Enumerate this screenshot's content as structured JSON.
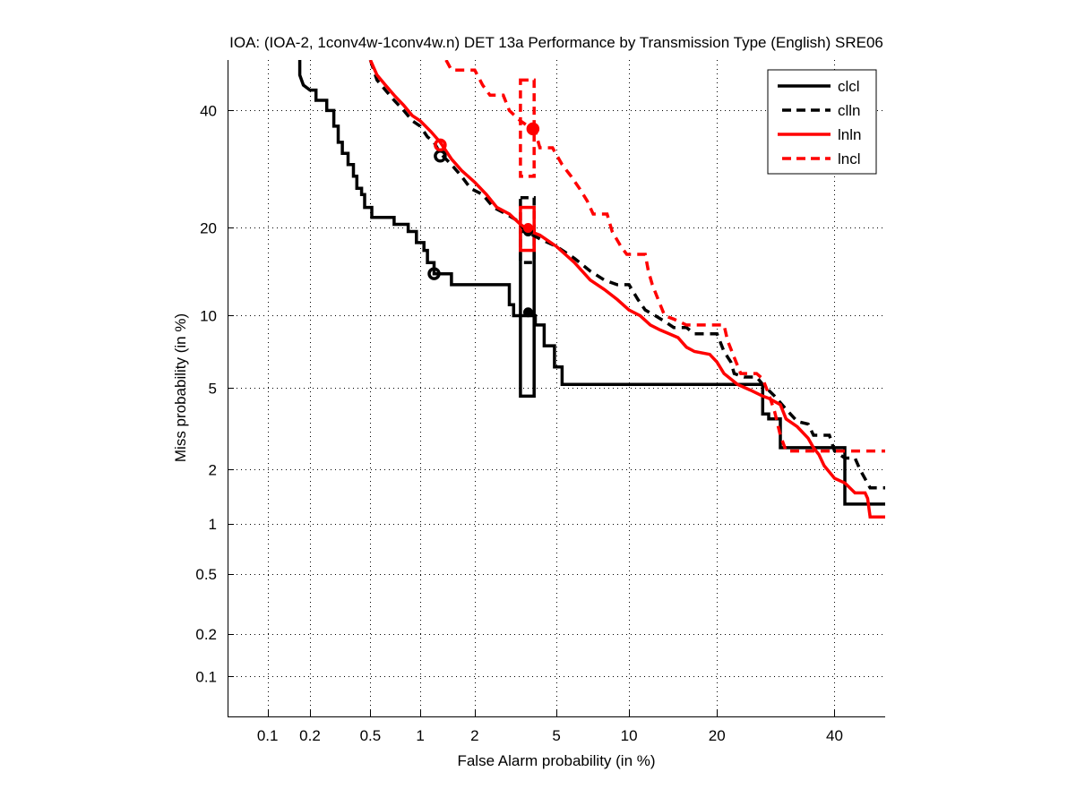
{
  "chart_data": {
    "type": "line",
    "title": "IOA: (IOA-2, 1conv4w-1conv4w.n) DET 13a Performance by Transmission Type (English) SRE06",
    "xlabel": "False Alarm probability (in %)",
    "ylabel": "Miss probability (in %)",
    "xscale": "normal-deviate",
    "yscale": "normal-deviate",
    "xlim": [
      0.05,
      50
    ],
    "ylim": [
      0.05,
      50
    ],
    "grid": true,
    "legend_position": "top-right",
    "xticks": [
      0.1,
      0.2,
      0.5,
      1,
      2,
      5,
      10,
      20,
      40
    ],
    "xtick_labels": [
      "0.1",
      "0.2",
      "0.5",
      "1",
      "2",
      "5",
      "10",
      "20",
      "40"
    ],
    "yticks": [
      0.1,
      0.2,
      0.5,
      1,
      2,
      5,
      10,
      20,
      40
    ],
    "ytick_labels": [
      "0.1",
      "0.2",
      "0.5",
      "1",
      "2",
      "5",
      "10",
      "20",
      "40"
    ],
    "series": [
      {
        "name": "clcl",
        "color": "#000000",
        "style": "solid",
        "points": [
          [
            0.17,
            50
          ],
          [
            0.17,
            47
          ],
          [
            0.18,
            45
          ],
          [
            0.2,
            44
          ],
          [
            0.22,
            44
          ],
          [
            0.22,
            42
          ],
          [
            0.26,
            42
          ],
          [
            0.26,
            40
          ],
          [
            0.29,
            40
          ],
          [
            0.29,
            37
          ],
          [
            0.31,
            37
          ],
          [
            0.31,
            34
          ],
          [
            0.33,
            34
          ],
          [
            0.33,
            32
          ],
          [
            0.36,
            32
          ],
          [
            0.36,
            30
          ],
          [
            0.39,
            30
          ],
          [
            0.39,
            28
          ],
          [
            0.41,
            28
          ],
          [
            0.41,
            26
          ],
          [
            0.44,
            26
          ],
          [
            0.44,
            25
          ],
          [
            0.46,
            25
          ],
          [
            0.46,
            23
          ],
          [
            0.51,
            23
          ],
          [
            0.51,
            21.5
          ],
          [
            0.62,
            21.5
          ],
          [
            0.7,
            21.5
          ],
          [
            0.7,
            20.5
          ],
          [
            0.85,
            20.5
          ],
          [
            0.85,
            19.5
          ],
          [
            0.95,
            19.5
          ],
          [
            0.95,
            18
          ],
          [
            1.05,
            18
          ],
          [
            1.05,
            17
          ],
          [
            1.1,
            17
          ],
          [
            1.1,
            15.5
          ],
          [
            1.2,
            15.5
          ],
          [
            1.2,
            14.2
          ],
          [
            1.5,
            14.2
          ],
          [
            1.5,
            13
          ],
          [
            2.2,
            13
          ],
          [
            2.9,
            13
          ],
          [
            3.0,
            13
          ],
          [
            3.0,
            11
          ],
          [
            3.15,
            11
          ],
          [
            3.15,
            10
          ],
          [
            4.0,
            10
          ],
          [
            4.0,
            9.2
          ],
          [
            4.4,
            9.2
          ],
          [
            4.4,
            7.6
          ],
          [
            4.9,
            7.6
          ],
          [
            4.9,
            6.2
          ],
          [
            5.3,
            6.2
          ],
          [
            5.3,
            5.2
          ],
          [
            10,
            5.2
          ],
          [
            20,
            5.2
          ],
          [
            27,
            5.2
          ],
          [
            27,
            3.8
          ],
          [
            28,
            3.8
          ],
          [
            28,
            3.6
          ],
          [
            30,
            3.6
          ],
          [
            30,
            2.6
          ],
          [
            42,
            2.6
          ],
          [
            42,
            1.3
          ],
          [
            50,
            1.3
          ]
        ]
      },
      {
        "name": "clln",
        "color": "#000000",
        "style": "dashed",
        "points": [
          [
            0.5,
            50
          ],
          [
            0.55,
            46
          ],
          [
            0.62,
            44
          ],
          [
            0.7,
            42
          ],
          [
            0.8,
            40
          ],
          [
            0.9,
            38
          ],
          [
            1.0,
            37
          ],
          [
            1.1,
            35
          ],
          [
            1.2,
            34
          ],
          [
            1.3,
            32
          ],
          [
            1.5,
            30
          ],
          [
            1.7,
            28
          ],
          [
            1.9,
            26
          ],
          [
            2.2,
            25
          ],
          [
            2.5,
            23
          ],
          [
            2.9,
            22
          ],
          [
            3.3,
            21
          ],
          [
            3.6,
            19.5
          ],
          [
            4.2,
            18.5
          ],
          [
            5,
            17.5
          ],
          [
            6,
            16
          ],
          [
            7,
            14.5
          ],
          [
            8,
            13.5
          ],
          [
            9,
            13
          ],
          [
            10,
            13
          ],
          [
            10.8,
            11.5
          ],
          [
            11.5,
            10.5
          ],
          [
            12.5,
            10
          ],
          [
            13.5,
            9.5
          ],
          [
            14.5,
            9
          ],
          [
            16,
            9
          ],
          [
            17,
            8.5
          ],
          [
            20,
            8.5
          ],
          [
            21,
            7.2
          ],
          [
            22,
            6.5
          ],
          [
            22.5,
            5.8
          ],
          [
            24,
            5.6
          ],
          [
            26,
            5.6
          ],
          [
            27,
            5.2
          ],
          [
            29,
            4.6
          ],
          [
            31,
            4
          ],
          [
            33,
            3.5
          ],
          [
            35,
            3.4
          ],
          [
            36,
            3.0
          ],
          [
            39,
            3.0
          ],
          [
            40,
            2.5
          ],
          [
            42,
            2.3
          ],
          [
            44,
            2.3
          ],
          [
            45,
            2.0
          ],
          [
            47,
            1.6
          ],
          [
            50,
            1.6
          ]
        ]
      },
      {
        "name": "lnln",
        "color": "#ff0000",
        "style": "solid",
        "points": [
          [
            0.5,
            50
          ],
          [
            0.55,
            47
          ],
          [
            0.62,
            45
          ],
          [
            0.7,
            43
          ],
          [
            0.8,
            41
          ],
          [
            0.9,
            39
          ],
          [
            1.0,
            38
          ],
          [
            1.15,
            36
          ],
          [
            1.3,
            34
          ],
          [
            1.5,
            31
          ],
          [
            1.7,
            29
          ],
          [
            2.0,
            27
          ],
          [
            2.3,
            25
          ],
          [
            2.6,
            23
          ],
          [
            3.0,
            22
          ],
          [
            3.4,
            20.5
          ],
          [
            3.8,
            19.5
          ],
          [
            4.2,
            19
          ],
          [
            5,
            17.5
          ],
          [
            6,
            15.5
          ],
          [
            7,
            13.5
          ],
          [
            8,
            12.5
          ],
          [
            9,
            11.5
          ],
          [
            10,
            10.5
          ],
          [
            11,
            10
          ],
          [
            12,
            9.2
          ],
          [
            13,
            8.8
          ],
          [
            14,
            8.5
          ],
          [
            15,
            8.2
          ],
          [
            16,
            7.5
          ],
          [
            17,
            7.2
          ],
          [
            19,
            7
          ],
          [
            20,
            6.5
          ],
          [
            21,
            5.8
          ],
          [
            23,
            5.2
          ],
          [
            25,
            4.9
          ],
          [
            27,
            4.6
          ],
          [
            28,
            4.5
          ],
          [
            30,
            4.2
          ],
          [
            31,
            3.6
          ],
          [
            33,
            3.3
          ],
          [
            35,
            2.9
          ],
          [
            36,
            2.6
          ],
          [
            37,
            2.4
          ],
          [
            38,
            2.1
          ],
          [
            40,
            1.8
          ],
          [
            42,
            1.7
          ],
          [
            44,
            1.5
          ],
          [
            46,
            1.5
          ],
          [
            46.5,
            1.4
          ],
          [
            47,
            1.1
          ],
          [
            50,
            1.1
          ]
        ]
      },
      {
        "name": "lncl",
        "color": "#ff0000",
        "style": "dashed",
        "points": [
          [
            1.4,
            50
          ],
          [
            1.5,
            48
          ],
          [
            2.0,
            48
          ],
          [
            2.2,
            45
          ],
          [
            2.4,
            43
          ],
          [
            2.8,
            43
          ],
          [
            3.0,
            40
          ],
          [
            3.4,
            38
          ],
          [
            3.7,
            37
          ],
          [
            4.0,
            36
          ],
          [
            4.2,
            33
          ],
          [
            4.8,
            33
          ],
          [
            5.3,
            30
          ],
          [
            5.8,
            28
          ],
          [
            6.3,
            26
          ],
          [
            6.8,
            24
          ],
          [
            7.2,
            22
          ],
          [
            8.2,
            22
          ],
          [
            8.6,
            19.5
          ],
          [
            9.3,
            17.5
          ],
          [
            9.8,
            16.5
          ],
          [
            11.5,
            16.5
          ],
          [
            11.8,
            14.5
          ],
          [
            12.2,
            13
          ],
          [
            12.8,
            11.5
          ],
          [
            13.5,
            10
          ],
          [
            14.5,
            9.7
          ],
          [
            16,
            9.2
          ],
          [
            21,
            9.2
          ],
          [
            21.5,
            8
          ],
          [
            22.5,
            6.8
          ],
          [
            23.5,
            5.8
          ],
          [
            26,
            5.8
          ],
          [
            27,
            5.5
          ],
          [
            28,
            4.7
          ],
          [
            29,
            3.9
          ],
          [
            30,
            3.0
          ],
          [
            31,
            2.5
          ],
          [
            50,
            2.5
          ]
        ]
      }
    ],
    "actual_decision_points": [
      {
        "series": "clcl",
        "fa": 1.2,
        "miss": 14.2
      },
      {
        "series": "clln",
        "fa": 1.3,
        "miss": 31.5
      },
      {
        "series": "lnln",
        "fa": 1.3,
        "miss": 33.5
      },
      {
        "series": "lncl",
        "fa": 3.9,
        "miss": 36.5
      }
    ],
    "min_dcf_points": [
      {
        "series": "clcl",
        "fa": 3.7,
        "miss": 10.3
      },
      {
        "series": "clln",
        "fa": 3.7,
        "miss": 19.5
      },
      {
        "series": "lnln",
        "fa": 3.7,
        "miss": 20
      },
      {
        "series": "lncl",
        "fa": 3.9,
        "miss": 36.5
      }
    ],
    "confidence_boxes": [
      {
        "series": "clcl",
        "fa": [
          3.4,
          3.95
        ],
        "miss": [
          4.6,
          19.5
        ]
      },
      {
        "series": "clln",
        "fa": [
          3.4,
          3.95
        ],
        "miss": [
          15.5,
          24.5
        ]
      },
      {
        "series": "lnln",
        "fa": [
          3.4,
          3.95
        ],
        "miss": [
          17,
          23
        ]
      },
      {
        "series": "lncl",
        "fa": [
          3.4,
          3.95
        ],
        "miss": [
          28,
          46
        ]
      }
    ]
  }
}
